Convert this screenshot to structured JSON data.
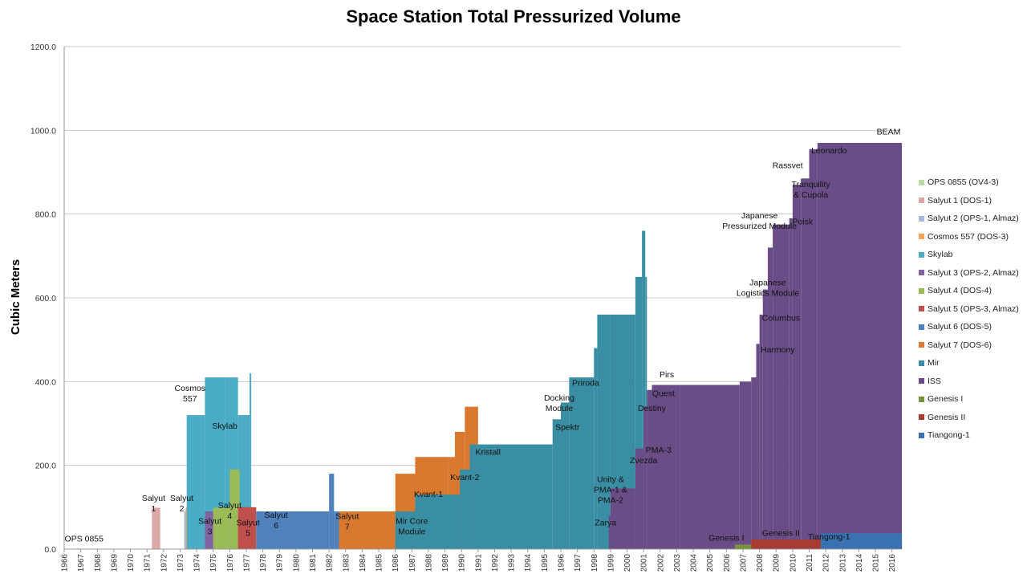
{
  "chart_data": {
    "type": "area",
    "title": "Space Station Total Pressurized Volume",
    "xlabel": "",
    "ylabel": "Cubic Meters",
    "xlim": [
      1966,
      2016.5
    ],
    "ylim": [
      0,
      1200
    ],
    "y_ticks": [
      "0.0",
      "200.0",
      "400.0",
      "600.0",
      "800.0",
      "1000.0",
      "1200.0"
    ],
    "x_ticks": [
      "1966",
      "1967",
      "1968",
      "1969",
      "1970",
      "1971",
      "1972",
      "1973",
      "1974",
      "1975",
      "1976",
      "1977",
      "1978",
      "1979",
      "1980",
      "1981",
      "1982",
      "1983",
      "1984",
      "1985",
      "1986",
      "1987",
      "1988",
      "1989",
      "1990",
      "1991",
      "1992",
      "1993",
      "1994",
      "1995",
      "1996",
      "1997",
      "1998",
      "1999",
      "2000",
      "2001",
      "2002",
      "2003",
      "2004",
      "2005",
      "2006",
      "2007",
      "2008",
      "2009",
      "2010",
      "2011",
      "2012",
      "2013",
      "2014",
      "2015",
      "2016"
    ],
    "grid": "horizontal",
    "legend_position": "right",
    "series": [
      {
        "name": "OPS 0855 (OV4-3)",
        "color": "#b7dba0",
        "steps": [
          [
            1966.8,
            1966.95,
            2
          ]
        ]
      },
      {
        "name": "Salyut 1 (DOS-1)",
        "color": "#dba8a8",
        "steps": [
          [
            1971.3,
            1971.8,
            99
          ]
        ]
      },
      {
        "name": "Salyut 2 (OPS-1, Almaz)",
        "color": "#a6b9dc",
        "steps": [
          [
            1973.25,
            1973.4,
            90
          ]
        ]
      },
      {
        "name": "Cosmos 557 (DOS-3)",
        "color": "#f2a45a",
        "steps": [
          [
            1973.35,
            1973.45,
            99
          ]
        ]
      },
      {
        "name": "Skylab",
        "color": "#4bacc6",
        "steps": [
          [
            1973.4,
            1974.5,
            320
          ],
          [
            1974.5,
            1975.7,
            410
          ],
          [
            1975.7,
            1976.35,
            410
          ],
          [
            1976.35,
            1976.5,
            410
          ],
          [
            1976.5,
            1977.2,
            320
          ],
          [
            1977.2,
            1977.3,
            420
          ]
        ]
      },
      {
        "name": "Salyut 3 (OPS-2, Almaz)",
        "color": "#8064a2",
        "steps": [
          [
            1974.5,
            1975.0,
            90
          ]
        ]
      },
      {
        "name": "Salyut 4 (DOS-4)",
        "color": "#9bbb59",
        "steps": [
          [
            1975.0,
            1976.0,
            99
          ],
          [
            1976.0,
            1976.6,
            190
          ],
          [
            1976.6,
            1977.0,
            99
          ]
        ]
      },
      {
        "name": "Salyut 5 (OPS-3, Almaz)",
        "color": "#c0504d",
        "steps": [
          [
            1976.5,
            1977.6,
            100
          ]
        ]
      },
      {
        "name": "Salyut 6 (DOS-5)",
        "color": "#4f81bd",
        "steps": [
          [
            1977.6,
            1982.0,
            90
          ],
          [
            1982.0,
            1982.3,
            180
          ],
          [
            1982.3,
            1982.6,
            90
          ]
        ]
      },
      {
        "name": "Salyut 7 (DOS-6)",
        "color": "#d9792f",
        "steps": [
          [
            1982.6,
            1986.0,
            90
          ],
          [
            1986.0,
            1987.2,
            180
          ],
          [
            1987.2,
            1989.2,
            220
          ],
          [
            1989.2,
            1989.6,
            220
          ],
          [
            1989.6,
            1990.2,
            280
          ],
          [
            1990.2,
            1991.0,
            340
          ]
        ]
      },
      {
        "name": "Mir",
        "color": "#3a8ea3",
        "steps": [
          [
            1986.0,
            1987.2,
            90
          ],
          [
            1987.2,
            1989.9,
            130
          ],
          [
            1989.9,
            1990.5,
            190
          ],
          [
            1990.5,
            1995.5,
            250
          ],
          [
            1995.5,
            1996.0,
            310
          ],
          [
            1996.0,
            1996.5,
            350
          ],
          [
            1996.5,
            1998.0,
            410
          ],
          [
            1998.0,
            1998.2,
            480
          ],
          [
            1998.2,
            1999.0,
            560
          ],
          [
            1999.0,
            2000.5,
            560
          ],
          [
            2000.5,
            2000.7,
            650
          ],
          [
            2000.7,
            2000.9,
            650
          ],
          [
            2000.9,
            2001.1,
            760
          ],
          [
            2001.1,
            2001.2,
            650
          ]
        ]
      },
      {
        "name": "ISS",
        "color": "#6a4d87",
        "steps": [
          [
            1998.9,
            1999.0,
            80
          ],
          [
            1999.0,
            2000.5,
            145
          ],
          [
            2000.5,
            2001.0,
            240
          ],
          [
            2001.0,
            2001.2,
            340
          ],
          [
            2001.2,
            2001.5,
            380
          ],
          [
            2001.5,
            2003.2,
            392
          ],
          [
            2003.2,
            2006.8,
            392
          ],
          [
            2006.8,
            2007.5,
            400
          ],
          [
            2007.5,
            2007.8,
            410
          ],
          [
            2007.8,
            2008.0,
            490
          ],
          [
            2008.0,
            2008.2,
            560
          ],
          [
            2008.2,
            2008.5,
            620
          ],
          [
            2008.5,
            2008.8,
            720
          ],
          [
            2008.8,
            2009.8,
            775
          ],
          [
            2009.8,
            2010.0,
            790
          ],
          [
            2010.0,
            2010.5,
            870
          ],
          [
            2010.5,
            2011.0,
            885
          ],
          [
            2011.0,
            2011.5,
            955
          ],
          [
            2011.5,
            2016.6,
            970
          ]
        ]
      },
      {
        "name": "Genesis I",
        "color": "#77933c",
        "steps": [
          [
            2006.5,
            2016.6,
            11
          ]
        ]
      },
      {
        "name": "Genesis II",
        "color": "#a83b32",
        "steps": [
          [
            2007.5,
            2016.6,
            23
          ]
        ]
      },
      {
        "name": "Tiangong-1",
        "color": "#3a71b0",
        "steps": [
          [
            2011.7,
            2016.6,
            38
          ]
        ]
      }
    ],
    "annotations": [
      {
        "text": "OPS 0855",
        "x": 1967.2,
        "y": 18
      },
      {
        "text": "Salyut\n1",
        "x": 1971.4,
        "y": 115
      },
      {
        "text": "Salyut\n2",
        "x": 1973.1,
        "y": 115
      },
      {
        "text": "Salyut\n3",
        "x": 1974.8,
        "y": 60
      },
      {
        "text": "Salyut\n4",
        "x": 1976.0,
        "y": 98
      },
      {
        "text": "Salyut\n5",
        "x": 1977.1,
        "y": 57
      },
      {
        "text": "Salyut\n6",
        "x": 1978.8,
        "y": 75
      },
      {
        "text": "Salyut\n7",
        "x": 1983.1,
        "y": 72
      },
      {
        "text": "Cosmos\n557",
        "x": 1973.6,
        "y": 378
      },
      {
        "text": "Skylab",
        "x": 1975.7,
        "y": 288
      },
      {
        "text": "Mir Core\nModule",
        "x": 1987.0,
        "y": 60
      },
      {
        "text": "Kvant-1",
        "x": 1988.0,
        "y": 125
      },
      {
        "text": "Kvant-2",
        "x": 1990.2,
        "y": 165
      },
      {
        "text": "Kristall",
        "x": 1991.6,
        "y": 225
      },
      {
        "text": "Spektr",
        "x": 1996.4,
        "y": 285
      },
      {
        "text": "Docking\nModule",
        "x": 1995.9,
        "y": 355
      },
      {
        "text": "Priroda",
        "x": 1997.5,
        "y": 390
      },
      {
        "text": "Zarya",
        "x": 1998.7,
        "y": 57
      },
      {
        "text": "Unity &\nPMA-1 &\nPMA-2",
        "x": 1999.0,
        "y": 160
      },
      {
        "text": "Zvezda",
        "x": 2001.0,
        "y": 205
      },
      {
        "text": "PMA-3",
        "x": 2001.9,
        "y": 230
      },
      {
        "text": "Destiny",
        "x": 2001.5,
        "y": 330
      },
      {
        "text": "Quest",
        "x": 2002.2,
        "y": 365
      },
      {
        "text": "Pirs",
        "x": 2002.4,
        "y": 410
      },
      {
        "text": "Genesis I",
        "x": 2006.0,
        "y": 20
      },
      {
        "text": "Genesis II",
        "x": 2009.3,
        "y": 32
      },
      {
        "text": "Tiangong-1",
        "x": 2012.2,
        "y": 23
      },
      {
        "text": "Harmony",
        "x": 2009.1,
        "y": 470
      },
      {
        "text": "Columbus",
        "x": 2009.3,
        "y": 545
      },
      {
        "text": "Japanese\nLogistics Module",
        "x": 2008.5,
        "y": 630
      },
      {
        "text": "Japanese\nPressurized Module",
        "x": 2008.0,
        "y": 790
      },
      {
        "text": "Poisk",
        "x": 2010.6,
        "y": 775
      },
      {
        "text": "Tranquility\n& Cupola",
        "x": 2011.1,
        "y": 865
      },
      {
        "text": "Rassvet",
        "x": 2009.7,
        "y": 910
      },
      {
        "text": "Leonardo",
        "x": 2012.2,
        "y": 945
      },
      {
        "text": "BEAM",
        "x": 2015.8,
        "y": 990
      }
    ]
  }
}
